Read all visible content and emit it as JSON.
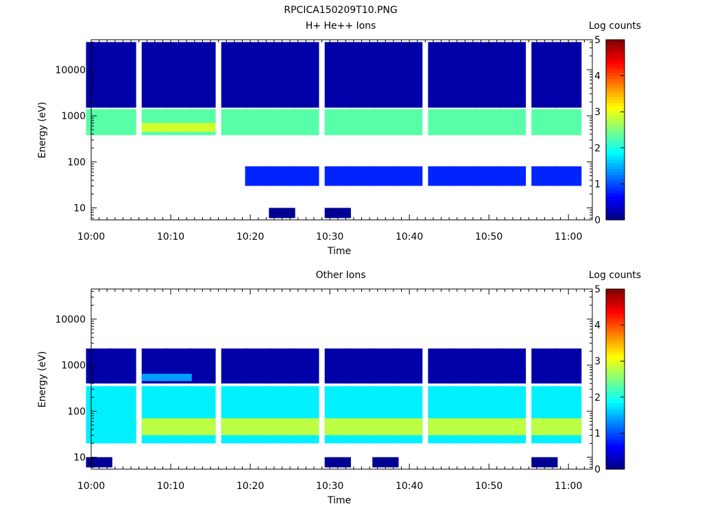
{
  "figure_title": "RPCICA150209T10.PNG",
  "colors": {
    "axis": "#000000",
    "background": "#ffffff"
  },
  "colormap": "jet",
  "chart_data": [
    {
      "type": "heatmap",
      "title": "H+ He++ Ions",
      "xlabel": "Time",
      "ylabel": "Energy (eV)",
      "xlim": [
        "10:00",
        "11:03"
      ],
      "ylim": [
        5.5,
        45000
      ],
      "y_scale": "log",
      "y_tick_labels": [
        "10",
        "100",
        "1000",
        "10000"
      ],
      "x_tick_labels": [
        "10:00",
        "10:10",
        "10:20",
        "10:30",
        "10:40",
        "10:50",
        "11:00"
      ],
      "colorbar": {
        "label": "Log counts",
        "range": [
          0,
          5
        ],
        "tick_labels": [
          "0",
          "1",
          "2",
          "3",
          "4",
          "5"
        ]
      },
      "time_bins": [
        "10:01",
        "10:04",
        "10:08",
        "10:11",
        "10:14",
        "10:18",
        "10:21",
        "10:24",
        "10:27",
        "10:31",
        "10:34",
        "10:37",
        "10:40",
        "10:44",
        "10:47",
        "10:50",
        "10:53",
        "10:57",
        "11:00"
      ],
      "features": [
        {
          "energy": [
            380,
            1400
          ],
          "level": 2.3,
          "bins": [
            0,
            1,
            2,
            3,
            4,
            5,
            6,
            7,
            8,
            9,
            10,
            11,
            12,
            13,
            14,
            15,
            16,
            17,
            18
          ]
        },
        {
          "energy": [
            450,
            700
          ],
          "level": 2.9,
          "bins": [
            2,
            3,
            4
          ]
        },
        {
          "energy": [
            30,
            80
          ],
          "level": 0.8,
          "bins": [
            6,
            7,
            8,
            9,
            10,
            11,
            12,
            13,
            14,
            15,
            16,
            17,
            18
          ]
        },
        {
          "energy": [
            1500,
            40000
          ],
          "level": 0.2,
          "bins": [
            0,
            1,
            2,
            3,
            4,
            5,
            6,
            7,
            8,
            9,
            10,
            11,
            12,
            13,
            14,
            15,
            16,
            17,
            18
          ]
        },
        {
          "energy": [
            6,
            10
          ],
          "level": 0.1,
          "bins": [
            7,
            9
          ]
        }
      ]
    },
    {
      "type": "heatmap",
      "title": "Other Ions",
      "xlabel": "Time",
      "ylabel": "Energy (eV)",
      "xlim": [
        "10:00",
        "11:03"
      ],
      "ylim": [
        5.5,
        45000
      ],
      "y_scale": "log",
      "y_tick_labels": [
        "10",
        "100",
        "1000",
        "10000"
      ],
      "x_tick_labels": [
        "10:00",
        "10:10",
        "10:20",
        "10:30",
        "10:40",
        "10:50",
        "11:00"
      ],
      "colorbar": {
        "label": "Log counts",
        "range": [
          0,
          5
        ],
        "tick_labels": [
          "0",
          "1",
          "2",
          "3",
          "4",
          "5"
        ]
      },
      "time_bins": [
        "10:01",
        "10:04",
        "10:08",
        "10:11",
        "10:14",
        "10:18",
        "10:21",
        "10:24",
        "10:27",
        "10:31",
        "10:34",
        "10:37",
        "10:40",
        "10:44",
        "10:47",
        "10:50",
        "10:53",
        "10:57",
        "11:00"
      ],
      "features": [
        {
          "energy": [
            20,
            350
          ],
          "level": 1.8,
          "bins": [
            0,
            1,
            2,
            3,
            4,
            5,
            6,
            7,
            8,
            9,
            10,
            11,
            12,
            13,
            14,
            15,
            16,
            17,
            18
          ]
        },
        {
          "energy": [
            30,
            70
          ],
          "level": 2.8,
          "bins": [
            2,
            3,
            4,
            5,
            6,
            7,
            8,
            9,
            10,
            11,
            12,
            13,
            14,
            15,
            16,
            17,
            18
          ]
        },
        {
          "energy": [
            400,
            2300
          ],
          "level": 0.2,
          "bins": [
            0,
            1,
            2,
            3,
            4,
            5,
            6,
            7,
            8,
            9,
            10,
            11,
            12,
            13,
            14,
            15,
            16,
            17,
            18
          ]
        },
        {
          "energy": [
            450,
            650
          ],
          "level": 1.4,
          "bins": [
            2,
            3
          ]
        },
        {
          "energy": [
            6,
            10
          ],
          "level": 0.1,
          "bins": [
            0,
            9,
            11,
            17
          ]
        }
      ]
    }
  ]
}
